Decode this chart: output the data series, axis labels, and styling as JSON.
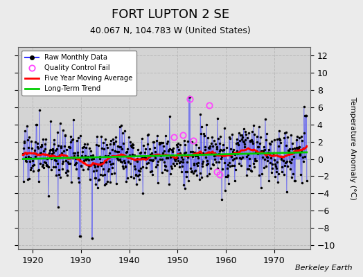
{
  "title": "FORT LUPTON 2 SE",
  "subtitle": "40.067 N, 104.783 W (United States)",
  "ylabel": "Temperature Anomaly (°C)",
  "watermark": "Berkeley Earth",
  "ylim": [
    -10.5,
    13
  ],
  "yticks": [
    -10,
    -8,
    -6,
    -4,
    -2,
    0,
    2,
    4,
    6,
    8,
    10,
    12
  ],
  "xlim_start": 1917.0,
  "xlim_end": 1977.5,
  "xticks": [
    1920,
    1930,
    1940,
    1950,
    1960,
    1970
  ],
  "fig_facecolor": "#ebebeb",
  "plot_bg_color": "#d4d4d4",
  "grid_color": "#c0c0c0",
  "raw_line_color": "#3333ff",
  "raw_dot_color": "#000000",
  "ma_color": "#ff0000",
  "trend_color": "#00cc00",
  "qc_color": "#ff44ff",
  "legend_items": [
    "Raw Monthly Data",
    "Quality Control Fail",
    "Five Year Moving Average",
    "Long-Term Trend"
  ],
  "title_fontsize": 13,
  "subtitle_fontsize": 9,
  "label_fontsize": 8,
  "tick_fontsize": 9,
  "watermark_fontsize": 8,
  "qc_times": [
    1949.3,
    1951.1,
    1952.5,
    1953.2,
    1956.5,
    1958.2,
    1958.7
  ],
  "qc_vals": [
    2.5,
    2.8,
    7.0,
    2.1,
    6.2,
    -1.5,
    -1.8
  ],
  "extreme_times": [
    1952.4
  ],
  "extreme_vals": [
    7.0
  ],
  "seed": 17
}
